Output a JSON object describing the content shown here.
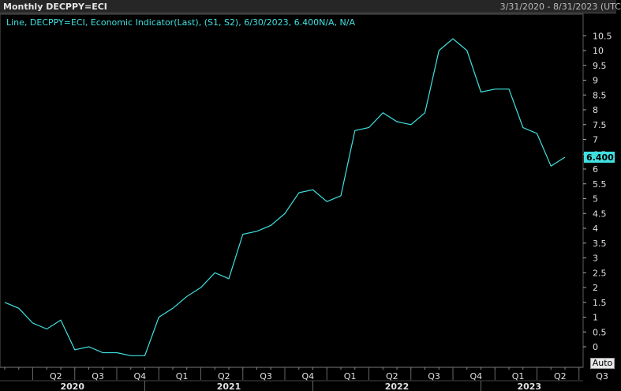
{
  "header": {
    "title": "Monthly DECPPY=ECI",
    "date_range": "3/31/2020 - 8/31/2023 (UTC"
  },
  "controls": {
    "auto_label": "Auto"
  },
  "chart_data": {
    "type": "line",
    "legend": "Line, DECPPY=ECI, Economic Indicator(Last), (S1, S2), 6/30/2023, 6.400N/A, N/A",
    "last_value_label": "6.400",
    "ylim": [
      -0.5,
      11
    ],
    "y_ticks": [
      0,
      0.5,
      1,
      1.5,
      2,
      2.5,
      3,
      3.5,
      4,
      4.5,
      5,
      5.5,
      6,
      6.5,
      7,
      7.5,
      8,
      8.5,
      9,
      9.5,
      10,
      10.5
    ],
    "y_tick_labels": [
      "0",
      "0.5",
      "1",
      "1.5",
      "2",
      "2.5",
      "3",
      "3.5",
      "4",
      "4.5",
      "5",
      "5.5",
      "6",
      "6.5",
      "7",
      "7.5",
      "8",
      "8.5",
      "9",
      "9.5",
      "10",
      "10.5"
    ],
    "quarter_labels": [
      "Q2",
      "Q3",
      "Q4",
      "Q1",
      "Q2",
      "Q3",
      "Q4",
      "Q1",
      "Q2",
      "Q3",
      "Q4",
      "Q1",
      "Q2",
      "Q3"
    ],
    "year_labels": [
      "2020",
      "2021",
      "2022",
      "2023"
    ],
    "x_period": "monthly, 3/31/2020 - 8/31/2023",
    "line_color": "#40e0e0",
    "values": [
      1.5,
      1.3,
      0.8,
      0.6,
      0.9,
      -0.1,
      0.0,
      -0.2,
      -0.2,
      -0.3,
      -0.3,
      1.0,
      1.3,
      1.7,
      2.0,
      2.5,
      2.3,
      3.8,
      3.9,
      4.1,
      4.5,
      5.2,
      5.3,
      4.9,
      5.1,
      7.3,
      7.4,
      7.9,
      7.6,
      7.5,
      7.9,
      10.0,
      10.4,
      10.0,
      8.6,
      8.7,
      8.7,
      7.4,
      7.2,
      6.1,
      6.4
    ]
  }
}
